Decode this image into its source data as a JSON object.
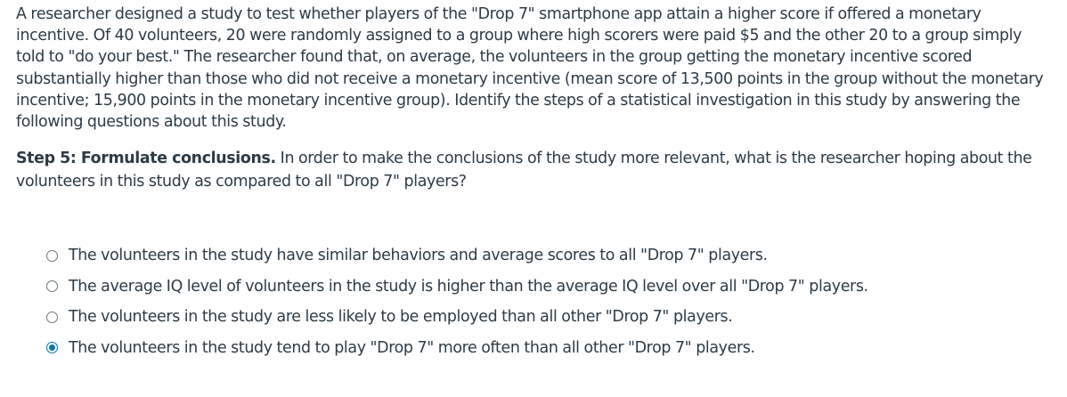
{
  "question": {
    "stem": "A researcher designed a study to test whether players of the \"Drop 7\" smartphone app attain a higher score if offered a monetary incentive. Of 40 volunteers, 20 were randomly assigned to a group where high scorers were paid $5 and the other 20 to a group simply told to \"do your best.\" The researcher found that, on average, the volunteers in the group getting the monetary incentive scored substantially higher than those who did not receive a monetary incentive (mean score of 13,500 points in the group without the monetary incentive; 15,900 points in the monetary incentive group). Identify the steps of a statistical investigation in this study by answering the following questions about this study.",
    "step_title": "Step 5: Formulate conclusions.",
    "step_text": " In order to make the conclusions of the study more relevant, what is the researcher hoping about the volunteers in this study as compared to all \"Drop 7\" players?"
  },
  "answers": [
    {
      "label": "The volunteers in the study have similar behaviors and average scores to all \"Drop 7\" players.",
      "selected": false
    },
    {
      "label": "The average IQ level of volunteers in the study is higher than the average IQ level over all \"Drop 7\" players.",
      "selected": false
    },
    {
      "label": "The volunteers in the study are less likely to be employed than all other \"Drop 7\" players.",
      "selected": false
    },
    {
      "label": "The volunteers in the study tend to play \"Drop 7\" more often than all other \"Drop 7\" players.",
      "selected": true
    }
  ],
  "colors": {
    "text": "#2d3b45",
    "radio_selected": "#0374b5",
    "radio_border": "#6b7780"
  }
}
